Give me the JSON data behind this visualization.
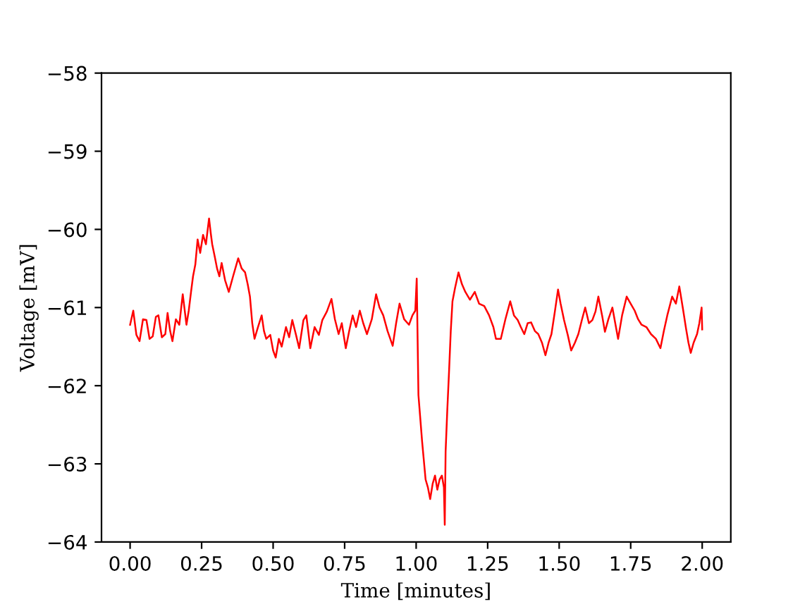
{
  "chart_data": {
    "type": "line",
    "xlabel": "Time [minutes]",
    "ylabel": "Voltage [mV]",
    "color": "#ff0000",
    "xlim": [
      -0.1,
      2.1
    ],
    "ylim": [
      -64,
      -58
    ],
    "xticks": [
      {
        "value": 0,
        "label": "0.00"
      },
      {
        "value": 0.25,
        "label": "0.25"
      },
      {
        "value": 0.5,
        "label": "0.50"
      },
      {
        "value": 0.75,
        "label": "0.75"
      },
      {
        "value": 1,
        "label": "1.00"
      },
      {
        "value": 1.25,
        "label": "1.25"
      },
      {
        "value": 1.5,
        "label": "1.50"
      },
      {
        "value": 1.75,
        "label": "1.75"
      },
      {
        "value": 2,
        "label": "2.00"
      }
    ],
    "yticks": [
      {
        "value": -64,
        "label": "−64"
      },
      {
        "value": -63,
        "label": "−63"
      },
      {
        "value": -62,
        "label": "−62"
      },
      {
        "value": -61,
        "label": "−61"
      },
      {
        "value": -60,
        "label": "−60"
      },
      {
        "value": -59,
        "label": "−59"
      },
      {
        "value": -58,
        "label": "−58"
      }
    ],
    "x": [
      0.0,
      0.011,
      0.022,
      0.033,
      0.045,
      0.057,
      0.068,
      0.079,
      0.09,
      0.099,
      0.111,
      0.123,
      0.131,
      0.14,
      0.148,
      0.16,
      0.172,
      0.184,
      0.197,
      0.205,
      0.213,
      0.22,
      0.228,
      0.236,
      0.245,
      0.255,
      0.265,
      0.276,
      0.282,
      0.287,
      0.296,
      0.304,
      0.312,
      0.32,
      0.332,
      0.345,
      0.36,
      0.378,
      0.39,
      0.402,
      0.411,
      0.419,
      0.427,
      0.435,
      0.447,
      0.46,
      0.468,
      0.476,
      0.49,
      0.5,
      0.509,
      0.52,
      0.53,
      0.545,
      0.556,
      0.567,
      0.58,
      0.591,
      0.606,
      0.616,
      0.63,
      0.645,
      0.66,
      0.672,
      0.688,
      0.704,
      0.716,
      0.729,
      0.74,
      0.754,
      0.766,
      0.778,
      0.79,
      0.803,
      0.815,
      0.828,
      0.845,
      0.86,
      0.872,
      0.885,
      0.9,
      0.918,
      0.93,
      0.942,
      0.958,
      0.975,
      0.987,
      0.997,
      1.002,
      1.008,
      1.021,
      1.033,
      1.041,
      1.049,
      1.058,
      1.066,
      1.074,
      1.082,
      1.09,
      1.097,
      1.1,
      1.103,
      1.109,
      1.115,
      1.121,
      1.127,
      1.136,
      1.148,
      1.16,
      1.172,
      1.188,
      1.205,
      1.22,
      1.238,
      1.255,
      1.27,
      1.279,
      1.296,
      1.312,
      1.329,
      1.342,
      1.355,
      1.366,
      1.378,
      1.39,
      1.402,
      1.415,
      1.427,
      1.44,
      1.452,
      1.463,
      1.473,
      1.485,
      1.496,
      1.505,
      1.517,
      1.53,
      1.542,
      1.555,
      1.567,
      1.58,
      1.591,
      1.604,
      1.616,
      1.627,
      1.637,
      1.65,
      1.66,
      1.672,
      1.686,
      1.696,
      1.706,
      1.72,
      1.736,
      1.75,
      1.764,
      1.776,
      1.788,
      1.805,
      1.821,
      1.838,
      1.854,
      1.866,
      1.878,
      1.895,
      1.908,
      1.92,
      1.932,
      1.944,
      1.952,
      1.96,
      1.97,
      1.982,
      1.99,
      1.998,
      2.0
    ],
    "values": [
      -61.22,
      -61.04,
      -61.35,
      -61.43,
      -61.15,
      -61.16,
      -61.4,
      -61.37,
      -61.12,
      -61.1,
      -61.38,
      -61.34,
      -61.07,
      -61.3,
      -61.43,
      -61.15,
      -61.22,
      -60.83,
      -61.22,
      -61.04,
      -60.8,
      -60.6,
      -60.45,
      -60.13,
      -60.3,
      -60.07,
      -60.19,
      -59.86,
      -60.05,
      -60.19,
      -60.35,
      -60.5,
      -60.6,
      -60.43,
      -60.65,
      -60.8,
      -60.6,
      -60.37,
      -60.5,
      -60.55,
      -60.7,
      -60.86,
      -61.2,
      -61.4,
      -61.25,
      -61.1,
      -61.3,
      -61.4,
      -61.35,
      -61.55,
      -61.64,
      -61.4,
      -61.5,
      -61.25,
      -61.38,
      -61.16,
      -61.35,
      -61.52,
      -61.16,
      -61.1,
      -61.52,
      -61.25,
      -61.35,
      -61.16,
      -61.05,
      -60.89,
      -61.15,
      -61.34,
      -61.2,
      -61.52,
      -61.3,
      -61.1,
      -61.25,
      -61.04,
      -61.2,
      -61.34,
      -61.15,
      -60.83,
      -61.0,
      -61.1,
      -61.3,
      -61.49,
      -61.2,
      -60.95,
      -61.15,
      -61.22,
      -61.1,
      -61.04,
      -60.63,
      -62.12,
      -62.72,
      -63.2,
      -63.3,
      -63.45,
      -63.25,
      -63.15,
      -63.33,
      -63.2,
      -63.15,
      -63.3,
      -63.78,
      -62.84,
      -62.3,
      -61.82,
      -61.3,
      -60.92,
      -60.75,
      -60.55,
      -60.7,
      -60.8,
      -60.9,
      -60.8,
      -60.95,
      -60.98,
      -61.1,
      -61.25,
      -61.4,
      -61.4,
      -61.15,
      -60.92,
      -61.1,
      -61.16,
      -61.25,
      -61.34,
      -61.2,
      -61.19,
      -61.3,
      -61.34,
      -61.45,
      -61.61,
      -61.45,
      -61.34,
      -61.05,
      -60.77,
      -60.95,
      -61.16,
      -61.35,
      -61.55,
      -61.45,
      -61.34,
      -61.15,
      -61.0,
      -61.2,
      -61.16,
      -61.05,
      -60.86,
      -61.1,
      -61.31,
      -61.15,
      -61.0,
      -61.2,
      -61.4,
      -61.1,
      -60.86,
      -60.95,
      -61.04,
      -61.15,
      -61.22,
      -61.25,
      -61.34,
      -61.4,
      -61.52,
      -61.3,
      -61.1,
      -60.86,
      -60.95,
      -60.73,
      -61.0,
      -61.28,
      -61.45,
      -61.58,
      -61.45,
      -61.34,
      -61.2,
      -61.0,
      -61.28
    ]
  }
}
